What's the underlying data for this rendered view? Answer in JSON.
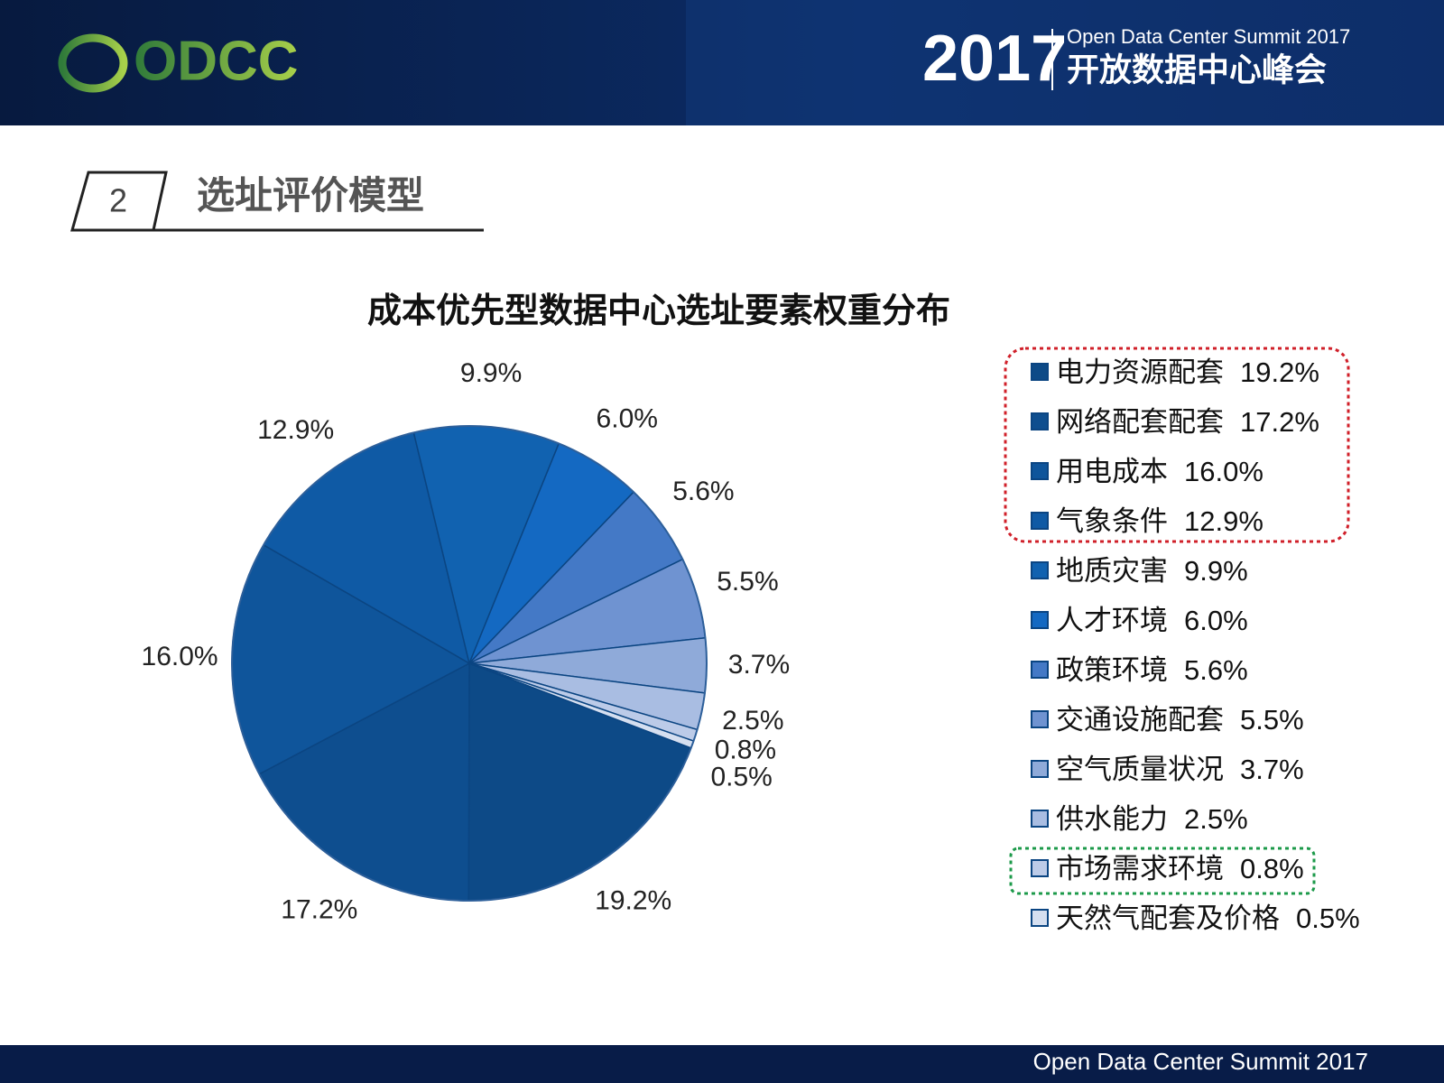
{
  "header": {
    "logo": "ODCC",
    "year": "2017",
    "event_en": "Open Data Center Summit 2017",
    "event_cn": "开放数据中心峰会"
  },
  "section": {
    "number": "2",
    "title": "选址评价模型"
  },
  "chart_data": {
    "type": "pie",
    "title": "成本优先型数据中心选址要素权重分布",
    "categories": [
      "电力资源配套",
      "网络配套配套",
      "用电成本",
      "气象条件",
      "地质灾害",
      "人才环境",
      "政策环境",
      "交通设施配套",
      "空气质量状况",
      "供水能力",
      "市场需求环境",
      "天然气配套及价格"
    ],
    "values": [
      19.2,
      17.2,
      16.0,
      12.9,
      9.9,
      6.0,
      5.6,
      5.5,
      3.7,
      2.5,
      0.8,
      0.5
    ],
    "value_labels": [
      "19.2%",
      "17.2%",
      "16.0%",
      "12.9%",
      "9.9%",
      "6.0%",
      "5.6%",
      "5.5%",
      "3.7%",
      "2.5%",
      "0.8%",
      "0.5%"
    ],
    "colors": [
      "#0d4a87",
      "#0e4e8f",
      "#0f559b",
      "#0f5aa5",
      "#1162b0",
      "#1469c2",
      "#4479c6",
      "#6f93d1",
      "#8faad9",
      "#a9bde2",
      "#bccbe8",
      "#d5dff0"
    ]
  },
  "footer": "Open Data Center Summit 2017"
}
